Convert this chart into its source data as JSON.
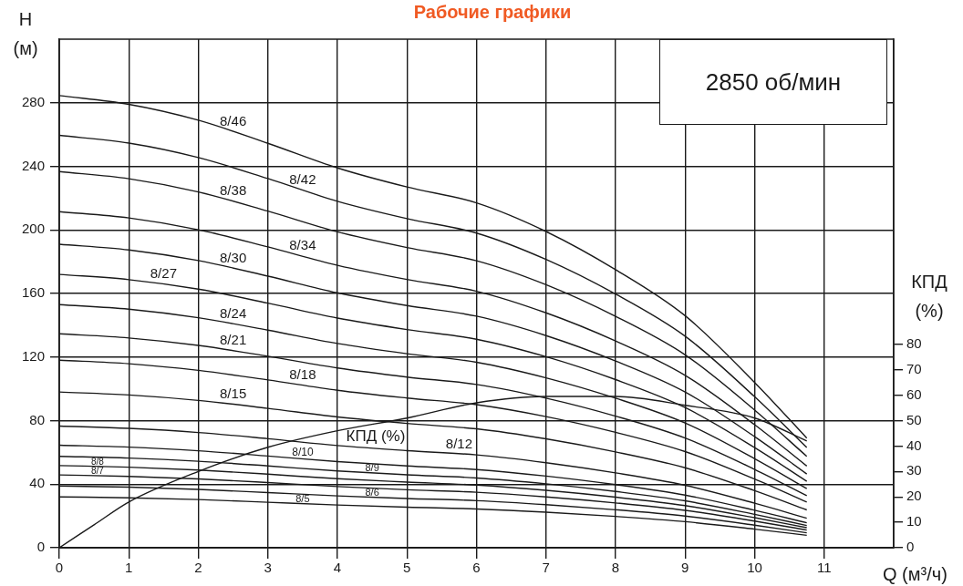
{
  "chart_data": {
    "type": "line",
    "title": "Рабочие графики",
    "xlabel": "Q (м³/ч)",
    "ylabel": "H (м)",
    "y2label": "КПД (%)",
    "annotations": [
      "2850 об/мин"
    ],
    "x": [
      0,
      1,
      2,
      3,
      4,
      5,
      6,
      7,
      8,
      9,
      10,
      10.75
    ],
    "xlim": [
      0,
      12
    ],
    "xticks": [
      0,
      1,
      2,
      3,
      4,
      5,
      6,
      7,
      8,
      9,
      10,
      11
    ],
    "ylim": [
      0,
      320
    ],
    "yticks": [
      0,
      40,
      80,
      120,
      160,
      200,
      240,
      280
    ],
    "y2lim": [
      0,
      200
    ],
    "y2ticks": [
      0,
      10,
      20,
      30,
      40,
      50,
      60,
      70,
      80
    ],
    "grid": true,
    "legend": false,
    "marker": "none",
    "line_style": "solid",
    "series": [
      {
        "name": "8/46",
        "color": "#1a1a1a",
        "values": [
          284.5,
          279,
          269,
          254.5,
          239,
          227,
          217,
          199,
          175,
          146,
          104,
          69
        ]
      },
      {
        "name": "8/42",
        "color": "#1a1a1a",
        "values": [
          259.5,
          254.6,
          245.5,
          232.3,
          218,
          207.1,
          198,
          181.4,
          159.6,
          133.1,
          95,
          63.1
        ]
      },
      {
        "name": "8/38",
        "color": "#1a1a1a",
        "values": [
          236.7,
          232.2,
          223.9,
          211.8,
          198.8,
          188.9,
          180.6,
          165.5,
          145.6,
          121.4,
          86.6,
          57.5
        ]
      },
      {
        "name": "8/34",
        "color": "#1a1a1a",
        "values": [
          211.5,
          207.5,
          200.1,
          189.3,
          177.7,
          168.8,
          161.4,
          147.8,
          130.1,
          108.5,
          77.4,
          51.4
        ]
      },
      {
        "name": "8/30",
        "color": "#1a1a1a",
        "values": [
          191,
          187.4,
          180.7,
          170.9,
          160.4,
          152.4,
          145.7,
          133.5,
          117.5,
          98,
          69.9,
          46.4
        ]
      },
      {
        "name": "8/27",
        "color": "#1a1a1a",
        "values": [
          172,
          168.7,
          162.7,
          153.9,
          144.5,
          137.3,
          131.2,
          120.2,
          105.8,
          88.2,
          63,
          41.8
        ]
      },
      {
        "name": "8/24",
        "color": "#1a1a1a",
        "values": [
          153,
          150.1,
          144.7,
          136.9,
          128.5,
          122.1,
          116.7,
          106.9,
          94.1,
          78.5,
          56,
          37.2
        ]
      },
      {
        "name": "8/21",
        "color": "#1a1a1a",
        "values": [
          134.6,
          132,
          127.3,
          120.5,
          113.1,
          107.4,
          102.7,
          94.1,
          82.8,
          69,
          49.3,
          32.7
        ]
      },
      {
        "name": "8/18",
        "color": "#1a1a1a",
        "values": [
          118,
          115.8,
          111.6,
          105.6,
          99.1,
          94.2,
          90,
          82.5,
          72.6,
          60.5,
          43.2,
          28.7
        ]
      },
      {
        "name": "8/15",
        "color": "#1a1a1a",
        "values": [
          98,
          96.1,
          92.7,
          87.7,
          82.3,
          78.2,
          74.8,
          68.5,
          60.3,
          50.3,
          35.9,
          23.8
        ]
      },
      {
        "name": "8/12",
        "color": "#1a1a1a",
        "values": [
          76.6,
          75.1,
          72.5,
          68.6,
          64.3,
          61.1,
          58.4,
          53.5,
          47.1,
          39.3,
          28,
          18.6
        ]
      },
      {
        "name": "8/10",
        "color": "#1a1a1a",
        "values": [
          64.5,
          63.3,
          61,
          57.7,
          54.2,
          51.5,
          49.2,
          45.1,
          39.7,
          33.1,
          23.6,
          15.7
        ]
      },
      {
        "name": "8/9",
        "color": "#1a1a1a",
        "values": [
          57.5,
          56.4,
          54.4,
          51.5,
          48.3,
          45.9,
          43.9,
          40.2,
          35.4,
          29.5,
          21,
          14
        ]
      },
      {
        "name": "8/8",
        "color": "#1a1a1a",
        "values": [
          51.7,
          50.7,
          48.9,
          46.3,
          43.4,
          41.3,
          39.4,
          36.1,
          31.8,
          26.5,
          18.9,
          12.6
        ]
      },
      {
        "name": "8/7",
        "color": "#1a1a1a",
        "values": [
          45.8,
          44.9,
          43.3,
          41,
          38.5,
          36.5,
          34.9,
          32,
          28.2,
          23.5,
          16.8,
          11.1
        ]
      },
      {
        "name": "8/6",
        "color": "#1a1a1a",
        "values": [
          38.8,
          38.1,
          36.7,
          34.7,
          32.6,
          31,
          29.6,
          27.1,
          23.9,
          19.9,
          14.2,
          9.4
        ]
      },
      {
        "name": "8/5",
        "color": "#1a1a1a",
        "values": [
          32,
          31.4,
          30.3,
          28.6,
          26.9,
          25.5,
          24.4,
          22.4,
          19.7,
          16.4,
          11.7,
          7.8
        ]
      },
      {
        "name": "КПД (%)",
        "color": "#1a1a1a",
        "axis": "y2",
        "x": [
          0,
          0.5,
          1,
          2,
          3,
          4,
          5,
          6,
          7,
          8,
          9,
          10,
          10.75
        ],
        "values": [
          0,
          9,
          18,
          30,
          39.5,
          46,
          51,
          57,
          59.5,
          59.5,
          56,
          51,
          42
        ]
      }
    ]
  }
}
